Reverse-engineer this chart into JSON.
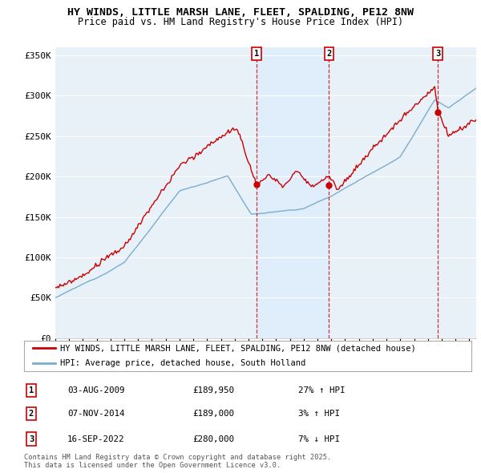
{
  "title": "HY WINDS, LITTLE MARSH LANE, FLEET, SPALDING, PE12 8NW",
  "subtitle": "Price paid vs. HM Land Registry's House Price Index (HPI)",
  "ylim": [
    0,
    360000
  ],
  "xlim_start": 1995.0,
  "xlim_end": 2025.5,
  "sale_dates": [
    2009.583,
    2014.833,
    2022.708
  ],
  "sale_prices": [
    189950,
    189000,
    280000
  ],
  "sale_labels": [
    "1",
    "2",
    "3"
  ],
  "legend_entries": [
    "HY WINDS, LITTLE MARSH LANE, FLEET, SPALDING, PE12 8NW (detached house)",
    "HPI: Average price, detached house, South Holland"
  ],
  "table_rows": [
    [
      "1",
      "03-AUG-2009",
      "£189,950",
      "27% ↑ HPI"
    ],
    [
      "2",
      "07-NOV-2014",
      "£189,000",
      "3% ↑ HPI"
    ],
    [
      "3",
      "16-SEP-2022",
      "£280,000",
      "7% ↓ HPI"
    ]
  ],
  "footnote": "Contains HM Land Registry data © Crown copyright and database right 2025.\nThis data is licensed under the Open Government Licence v3.0.",
  "red_color": "#cc0000",
  "blue_color": "#7aadcf",
  "shade_color": "#ddeeff",
  "background_color": "#e8f0f8",
  "grid_color": "#ffffff",
  "ytick_labels": [
    "£0",
    "£50K",
    "£100K",
    "£150K",
    "£200K",
    "£250K",
    "£300K",
    "£350K"
  ],
  "ytick_values": [
    0,
    50000,
    100000,
    150000,
    200000,
    250000,
    300000,
    350000
  ]
}
